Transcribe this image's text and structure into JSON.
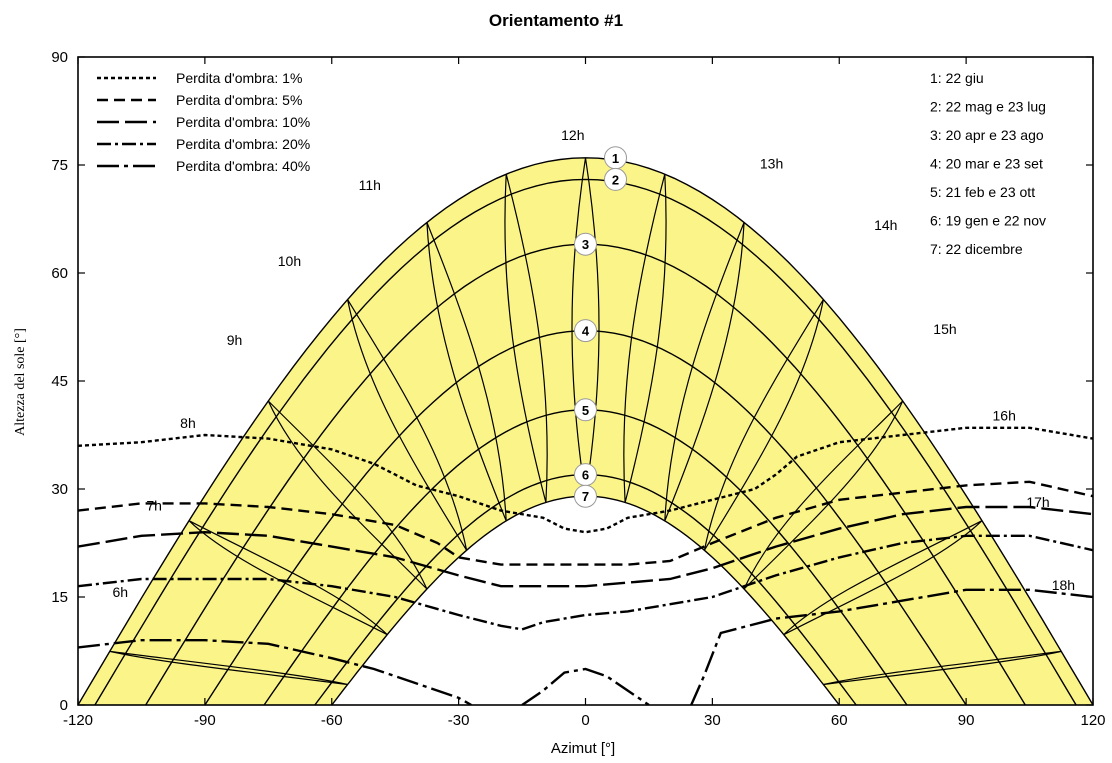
{
  "chart_data": {
    "type": "line",
    "title": "Orientamento #1",
    "xlabel": "Azimut [°]",
    "ylabel": "Altezza del sole [°]",
    "xlim": [
      -120,
      120
    ],
    "ylim": [
      0,
      90
    ],
    "xticks": [
      -120,
      -90,
      -60,
      -30,
      0,
      30,
      60,
      90,
      120
    ],
    "yticks": [
      0,
      15,
      30,
      45,
      60,
      75,
      90
    ],
    "fill_color": "#fbf489",
    "sun_paths": [
      {
        "id": "1",
        "label": "1: 22 giu",
        "max_altitude": 76,
        "half_width": 120
      },
      {
        "id": "2",
        "label": "2: 22 mag e 23 lug",
        "max_altitude": 73,
        "half_width": 116
      },
      {
        "id": "3",
        "label": "3: 20 apr e 23 ago",
        "max_altitude": 64,
        "half_width": 104
      },
      {
        "id": "4",
        "label": "4: 20 mar e 23 set",
        "max_altitude": 52,
        "half_width": 90
      },
      {
        "id": "5",
        "label": "5: 21 feb e 23 ott",
        "max_altitude": 41,
        "half_width": 76
      },
      {
        "id": "6",
        "label": "6: 19 gen e 22 nov",
        "max_altitude": 32,
        "half_width": 64
      },
      {
        "id": "7",
        "label": "7: 22 dicembre",
        "max_altitude": 29,
        "half_width": 60
      }
    ],
    "hour_labels": [
      {
        "label": "6h",
        "az": -110,
        "alt": 15
      },
      {
        "label": "7h",
        "az": -102,
        "alt": 27
      },
      {
        "label": "8h",
        "az": -94,
        "alt": 38.5
      },
      {
        "label": "9h",
        "az": -83,
        "alt": 50
      },
      {
        "label": "10h",
        "az": -70,
        "alt": 61
      },
      {
        "label": "11h",
        "az": -51,
        "alt": 71.5
      },
      {
        "label": "12h",
        "az": -3,
        "alt": 78.5
      },
      {
        "label": "13h",
        "az": 44,
        "alt": 74.5
      },
      {
        "label": "14h",
        "az": 71,
        "alt": 66
      },
      {
        "label": "15h",
        "az": 85,
        "alt": 51.5
      },
      {
        "label": "16h",
        "az": 99,
        "alt": 39.5
      },
      {
        "label": "17h",
        "az": 107,
        "alt": 27.5
      },
      {
        "label": "18h",
        "az": 113,
        "alt": 16
      }
    ],
    "shadow_loss_series": [
      {
        "name": "Perdita d'ombra: 1%",
        "dash": "4,3",
        "x": [
          -120,
          -105,
          -90,
          -75,
          -60,
          -50,
          -45,
          -40,
          -30,
          -20,
          -10,
          -5,
          0,
          5,
          10,
          20,
          30,
          40,
          45,
          50,
          60,
          75,
          90,
          105,
          120
        ],
        "y": [
          36,
          36.5,
          37.5,
          37,
          35.5,
          33.5,
          32,
          30.5,
          29,
          27,
          26,
          24.5,
          24,
          24.5,
          26,
          27,
          28.5,
          30,
          32,
          34.5,
          36.5,
          37.5,
          38.5,
          38.5,
          37
        ]
      },
      {
        "name": "Perdita d'ombra: 5%",
        "dash": "11,6",
        "x": [
          -120,
          -105,
          -90,
          -75,
          -60,
          -45,
          -35,
          -30,
          -20,
          -10,
          0,
          10,
          20,
          30,
          45,
          60,
          75,
          90,
          105,
          120
        ],
        "y": [
          27,
          28,
          28,
          27.5,
          26.5,
          25,
          22.5,
          20.5,
          19.5,
          19.5,
          19.5,
          19.5,
          20,
          22.5,
          26,
          28.5,
          29.5,
          30.5,
          31,
          29
        ]
      },
      {
        "name": "Perdita d'ombra: 10%",
        "dash": "22,6",
        "x": [
          -120,
          -105,
          -90,
          -75,
          -60,
          -45,
          -30,
          -20,
          -10,
          0,
          10,
          20,
          30,
          45,
          60,
          75,
          90,
          105,
          120
        ],
        "y": [
          22,
          23.5,
          24,
          23.5,
          22,
          20.5,
          18,
          16.5,
          16.5,
          16.5,
          17,
          17.5,
          19,
          22,
          24.5,
          26.5,
          27.5,
          27.5,
          26.5
        ]
      },
      {
        "name": "Perdita d'ombra: 20%",
        "dash": "14,4,3,4",
        "x": [
          -120,
          -105,
          -90,
          -75,
          -60,
          -45,
          -30,
          -20,
          -15,
          -10,
          0,
          10,
          20,
          30,
          45,
          60,
          75,
          90,
          105,
          120
        ],
        "y": [
          16.5,
          17.5,
          17.5,
          17.5,
          16.5,
          15,
          12.5,
          11,
          10.5,
          11.5,
          12.5,
          13,
          14,
          15,
          18,
          20.5,
          22.5,
          23.5,
          23.5,
          21.5
        ]
      },
      {
        "name": "Perdita d'ombra: 40%",
        "dash": "22,5,4,5",
        "x": [
          -120,
          -105,
          -90,
          -75,
          -60,
          -50,
          -45,
          -40,
          -30,
          -27
        ],
        "y": [
          8,
          9,
          9,
          8.5,
          6.5,
          5,
          4,
          3,
          1,
          0
        ]
      },
      {
        "name": "Perdita d'ombra: 40%",
        "dash": "22,5,4,5",
        "x": [
          -15,
          -10,
          -5,
          0,
          5,
          10,
          15
        ],
        "y": [
          0,
          2,
          4.5,
          5,
          4,
          2,
          0
        ]
      },
      {
        "name": "Perdita d'ombra: 40%",
        "dash": "22,5,4,5",
        "x": [
          25,
          28,
          32,
          45,
          60,
          75,
          90,
          105,
          120
        ],
        "y": [
          0,
          4,
          10,
          12,
          13,
          14.5,
          16,
          16,
          15
        ]
      }
    ]
  },
  "legend": {
    "items": [
      {
        "label": "Perdita d'ombra: 1%",
        "dash": "4,3"
      },
      {
        "label": "Perdita d'ombra: 5%",
        "dash": "11,6"
      },
      {
        "label": "Perdita d'ombra: 10%",
        "dash": "22,6"
      },
      {
        "label": "Perdita d'ombra: 20%",
        "dash": "14,4,3,4"
      },
      {
        "label": "Perdita d'ombra: 40%",
        "dash": "22,5,4,5"
      }
    ]
  },
  "date_legend": [
    "1: 22 giu",
    "2: 22 mag e 23 lug",
    "3: 20 apr e 23 ago",
    "4: 20 mar e 23 set",
    "5: 21 feb e 23 ott",
    "6: 19 gen e 22 nov",
    "7: 22 dicembre"
  ]
}
